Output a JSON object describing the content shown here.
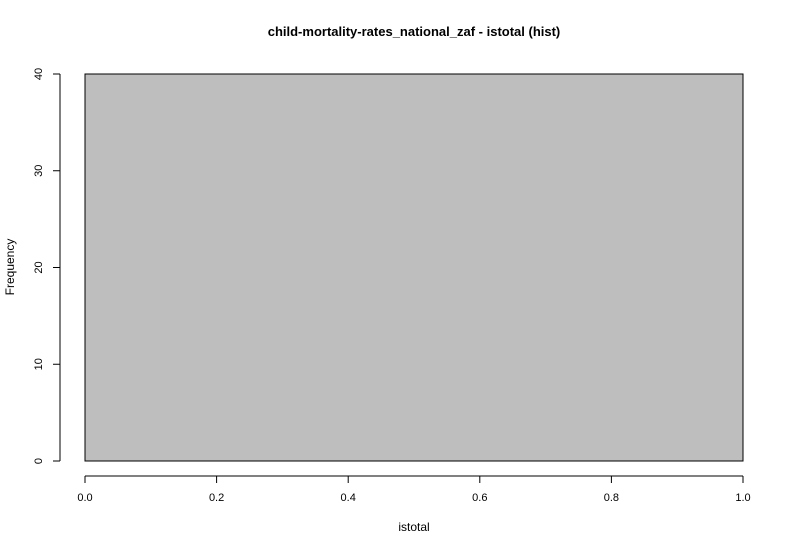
{
  "chart_data": {
    "type": "bar",
    "title": "child-mortality-rates_national_zaf - istotal (hist)",
    "xlabel": "istotal",
    "ylabel": "Frequency",
    "bins": [
      {
        "x0": 0.0,
        "x1": 1.0,
        "count": 40
      }
    ],
    "xlim": [
      0.0,
      1.0
    ],
    "ylim": [
      0,
      40
    ],
    "x_ticks": [
      "0.0",
      "0.2",
      "0.4",
      "0.6",
      "0.8",
      "1.0"
    ],
    "y_ticks": [
      "0",
      "10",
      "20",
      "30",
      "40"
    ],
    "grid": false,
    "legend": "none",
    "colors": {
      "bar_fill": "#bebebe",
      "bar_stroke": "#000000",
      "axis": "#000000"
    }
  }
}
